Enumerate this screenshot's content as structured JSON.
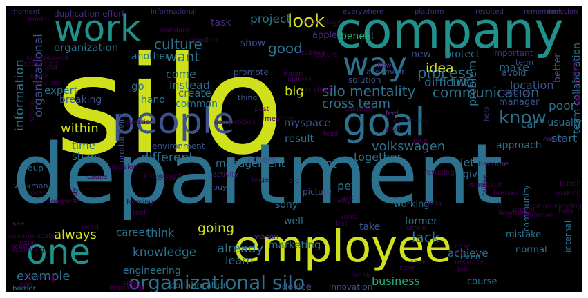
{
  "background": "#000000",
  "palette": [
    "#440154",
    "#472d7b",
    "#3b528b",
    "#2c728e",
    "#21918c",
    "#28ae80",
    "#5ec962",
    "#addc30",
    "#fde725"
  ],
  "words": [
    {
      "text": "silo",
      "color": "#d0e11c"
    },
    {
      "text": "department",
      "color": "#2c728e"
    },
    {
      "text": "company",
      "color": "#21918c"
    },
    {
      "text": "employee",
      "color": "#d0e11c"
    },
    {
      "text": "people",
      "color": "#3b528b"
    },
    {
      "text": "goal",
      "color": "#2c728e"
    },
    {
      "text": "work",
      "color": "#21918c"
    },
    {
      "text": "way",
      "color": "#2c728e"
    },
    {
      "text": "one",
      "color": "#21918c"
    },
    {
      "text": "organizational silo",
      "color": "#2c728e"
    },
    {
      "text": "silo mentality",
      "color": "#2c728e"
    },
    {
      "text": "communication",
      "color": "#2c728e"
    },
    {
      "text": "culture",
      "color": "#2c728e"
    },
    {
      "text": "information",
      "color": "#2c728e"
    },
    {
      "text": "organizational",
      "color": "#3b528b"
    },
    {
      "text": "organization",
      "color": "#2c728e"
    },
    {
      "text": "project",
      "color": "#2c728e"
    },
    {
      "text": "look",
      "color": "#d0e11c"
    },
    {
      "text": "know",
      "color": "#2c728e"
    },
    {
      "text": "process",
      "color": "#2c728e"
    },
    {
      "text": "want",
      "color": "#2c728e"
    },
    {
      "text": "good",
      "color": "#2c728e"
    },
    {
      "text": "task",
      "color": "#472d7b"
    },
    {
      "text": "show",
      "color": "#3b528b"
    },
    {
      "text": "benefit",
      "color": "#28ae80"
    },
    {
      "text": "two",
      "color": "#2c728e"
    },
    {
      "text": "idea",
      "color": "#d0e11c"
    },
    {
      "text": "new",
      "color": "#3b528b"
    },
    {
      "text": "make",
      "color": "#2c728e"
    },
    {
      "text": "location",
      "color": "#3b528b"
    },
    {
      "text": "better",
      "color": "#3b528b"
    },
    {
      "text": "protect",
      "color": "#2c728e"
    },
    {
      "text": "important",
      "color": "#472d7b"
    },
    {
      "text": "another",
      "color": "#2c728e"
    },
    {
      "text": "apple",
      "color": "#472d7b"
    },
    {
      "text": "promote",
      "color": "#3b528b"
    },
    {
      "text": "difficult",
      "color": "#2c728e"
    },
    {
      "text": "term",
      "color": "#3b528b"
    },
    {
      "text": "avoid",
      "color": "#3b528b"
    },
    {
      "text": "come",
      "color": "#2c728e"
    },
    {
      "text": "instead",
      "color": "#2c728e"
    },
    {
      "text": "go",
      "color": "#2c728e"
    },
    {
      "text": "create",
      "color": "#2c728e"
    },
    {
      "text": "common",
      "color": "#2c728e"
    },
    {
      "text": "hand",
      "color": "#2c728e"
    },
    {
      "text": "solution",
      "color": "#3b528b"
    },
    {
      "text": "alignment",
      "color": "#3b528b"
    },
    {
      "text": "expert",
      "color": "#2c728e"
    },
    {
      "text": "breaking",
      "color": "#3b528b"
    },
    {
      "text": "thing",
      "color": "#3b528b"
    },
    {
      "text": "big",
      "color": "#d0e11c"
    },
    {
      "text": "cross team",
      "color": "#2c728e"
    },
    {
      "text": "manager",
      "color": "#3b528b"
    },
    {
      "text": "poor",
      "color": "#2c728e"
    },
    {
      "text": "car",
      "color": "#2c728e"
    },
    {
      "text": "usually",
      "color": "#2c728e"
    },
    {
      "text": "start",
      "color": "#2c728e"
    },
    {
      "text": "myspace",
      "color": "#3b528b"
    },
    {
      "text": "within",
      "color": "#d0e11c"
    },
    {
      "text": "time",
      "color": "#2c728e"
    },
    {
      "text": "share",
      "color": "#2c728e"
    },
    {
      "text": "result",
      "color": "#2c728e"
    },
    {
      "text": "volkswagen",
      "color": "#2c728e"
    },
    {
      "text": "problem",
      "color": "#2c728e"
    },
    {
      "text": "let",
      "color": "#2c728e"
    },
    {
      "text": "approach",
      "color": "#2c728e"
    },
    {
      "text": "different",
      "color": "#2c728e"
    },
    {
      "text": "management",
      "color": "#2c728e"
    },
    {
      "text": "others",
      "color": "#3b528b"
    },
    {
      "text": "group",
      "color": "#2c728e"
    },
    {
      "text": "lot",
      "color": "#2c728e"
    },
    {
      "text": "together",
      "color": "#2c728e"
    },
    {
      "text": "give",
      "color": "#2c728e"
    },
    {
      "text": "team collaboration",
      "color": "#2c728e"
    },
    {
      "text": "become",
      "color": "#472d7b"
    },
    {
      "text": "walkman",
      "color": "#3b528b"
    },
    {
      "text": "environment",
      "color": "#3b528b"
    },
    {
      "text": "pet",
      "color": "#2c728e"
    },
    {
      "text": "picture",
      "color": "#3b528b"
    },
    {
      "text": "buy",
      "color": "#3b528b"
    },
    {
      "text": "sony",
      "color": "#2c728e"
    },
    {
      "text": "working",
      "color": "#2c728e"
    },
    {
      "text": "productivity",
      "color": "#3b528b"
    },
    {
      "text": "going",
      "color": "#d0e11c"
    },
    {
      "text": "think",
      "color": "#2c728e"
    },
    {
      "text": "marketing",
      "color": "#2c728e"
    },
    {
      "text": "well",
      "color": "#2c728e"
    },
    {
      "text": "former",
      "color": "#2c728e"
    },
    {
      "text": "take",
      "color": "#3b528b"
    },
    {
      "text": "mistake",
      "color": "#2c728e"
    },
    {
      "text": "achieve",
      "color": "#2c728e"
    },
    {
      "text": "normal",
      "color": "#2c728e"
    },
    {
      "text": "internal",
      "color": "#2c728e"
    },
    {
      "text": "community",
      "color": "#2c728e"
    },
    {
      "text": "always",
      "color": "#d0e11c"
    },
    {
      "text": "career",
      "color": "#2c728e"
    },
    {
      "text": "knowledge",
      "color": "#2c728e"
    },
    {
      "text": "already",
      "color": "#2c728e"
    },
    {
      "text": "learn",
      "color": "#2c728e"
    },
    {
      "text": "reason",
      "color": "#472d7b"
    },
    {
      "text": "engineering",
      "color": "#2c728e"
    },
    {
      "text": "example",
      "color": "#2c728e"
    },
    {
      "text": "barrier",
      "color": "#2c728e"
    },
    {
      "text": "business",
      "color": "#28ae80"
    },
    {
      "text": "lack",
      "color": "#2c728e"
    },
    {
      "text": "course",
      "color": "#2c728e"
    },
    {
      "text": "even",
      "color": "#2c728e"
    },
    {
      "text": "collaboration",
      "color": "#2c728e"
    },
    {
      "text": "device",
      "color": "#3b528b"
    },
    {
      "text": "innovation",
      "color": "#3b528b"
    },
    {
      "text": "duplication effort",
      "color": "#472d7b"
    },
    {
      "text": "moment",
      "color": "#472d7b"
    },
    {
      "text": "informational",
      "color": "#472d7b"
    },
    {
      "text": "everywhere",
      "color": "#472d7b"
    },
    {
      "text": "platform",
      "color": "#472d7b"
    },
    {
      "text": "resulted",
      "color": "#472d7b"
    },
    {
      "text": "remember",
      "color": "#472d7b"
    },
    {
      "text": "emission",
      "color": "#472d7b"
    },
    {
      "text": "model",
      "color": "#440154"
    },
    {
      "text": "technology",
      "color": "#440154"
    },
    {
      "text": "standard",
      "color": "#440154"
    },
    {
      "text": "deadline",
      "color": "#440154"
    },
    {
      "text": "requirement",
      "color": "#440154"
    },
    {
      "text": "separated",
      "color": "#440154"
    },
    {
      "text": "talked",
      "color": "#440154"
    },
    {
      "text": "stack",
      "color": "#440154"
    },
    {
      "text": "avoided",
      "color": "#440154"
    },
    {
      "text": "beneficial",
      "color": "#440154"
    },
    {
      "text": "talking",
      "color": "#440154"
    },
    {
      "text": "feature",
      "color": "#440154"
    },
    {
      "text": "flow",
      "color": "#472d7b"
    },
    {
      "text": "base",
      "color": "#440154"
    },
    {
      "text": "mean",
      "color": "#440154"
    },
    {
      "text": "idei",
      "color": "#440154"
    },
    {
      "text": "feel",
      "color": "#472d7b"
    },
    {
      "text": "without",
      "color": "#440154"
    },
    {
      "text": "product",
      "color": "#472d7b"
    },
    {
      "text": "audience",
      "color": "#440154"
    },
    {
      "text": "called",
      "color": "#472d7b"
    },
    {
      "text": "post",
      "color": "#440154"
    },
    {
      "text": "meaning",
      "color": "#440154"
    },
    {
      "text": "chimney",
      "color": "#440154"
    },
    {
      "text": "stuff",
      "color": "#440154"
    },
    {
      "text": "lead",
      "color": "#440154"
    },
    {
      "text": "nice",
      "color": "#440154"
    },
    {
      "text": "help",
      "color": "#472d7b"
    },
    {
      "text": "something",
      "color": "#440154"
    },
    {
      "text": "wrong",
      "color": "#440154"
    },
    {
      "text": "question",
      "color": "#440154"
    },
    {
      "text": "competition",
      "color": "#440154"
    },
    {
      "text": "decision",
      "color": "#440154"
    },
    {
      "text": "implement",
      "color": "#440154"
    },
    {
      "text": "activity",
      "color": "#472d7b"
    },
    {
      "text": "cause",
      "color": "#440154"
    },
    {
      "text": "cross",
      "color": "#440154"
    },
    {
      "text": "resulting",
      "color": "#440154"
    },
    {
      "text": "drawback",
      "color": "#440154"
    },
    {
      "text": "huge",
      "color": "#440154"
    },
    {
      "text": "old",
      "color": "#472d7b"
    },
    {
      "text": "ask",
      "color": "#440154"
    },
    {
      "text": "bunch",
      "color": "#440154"
    },
    {
      "text": "human",
      "color": "#440154"
    },
    {
      "text": "making",
      "color": "#440154"
    },
    {
      "text": "hate",
      "color": "#440154"
    },
    {
      "text": "user",
      "color": "#440154"
    },
    {
      "text": "complete",
      "color": "#440154"
    },
    {
      "text": "forming",
      "color": "#440154"
    },
    {
      "text": "tool",
      "color": "#440154"
    },
    {
      "text": "used",
      "color": "#440154"
    },
    {
      "text": "may",
      "color": "#440154"
    },
    {
      "text": "away",
      "color": "#440154"
    },
    {
      "text": "today",
      "color": "#440154"
    },
    {
      "text": "failure",
      "color": "#440154"
    },
    {
      "text": "anymore",
      "color": "#440154"
    },
    {
      "text": "war",
      "color": "#440154"
    },
    {
      "text": "improve",
      "color": "#440154"
    },
    {
      "text": "urgent",
      "color": "#440154"
    },
    {
      "text": "communicating",
      "color": "#440154"
    },
    {
      "text": "communicate",
      "color": "#440154"
    },
    {
      "text": "see",
      "color": "#472d7b"
    },
    {
      "text": "need",
      "color": "#440154"
    },
    {
      "text": "bad",
      "color": "#440154"
    },
    {
      "text": "sense",
      "color": "#440154"
    },
    {
      "text": "achieving",
      "color": "#440154"
    },
    {
      "text": "scarce",
      "color": "#440154"
    },
    {
      "text": "expo",
      "color": "#440154"
    },
    {
      "text": "case",
      "color": "#440154"
    },
    {
      "text": "sign",
      "color": "#440154"
    },
    {
      "text": "resource",
      "color": "#440154"
    },
    {
      "text": "thinking",
      "color": "#440154"
    },
    {
      "text": "improving",
      "color": "#440154"
    },
    {
      "text": "break",
      "color": "#440154"
    },
    {
      "text": "save",
      "color": "#440154"
    },
    {
      "text": "job",
      "color": "#440154"
    },
    {
      "text": "care",
      "color": "#440154"
    },
    {
      "text": "goo",
      "color": "#440154"
    },
    {
      "text": "spec",
      "color": "#440154"
    }
  ]
}
